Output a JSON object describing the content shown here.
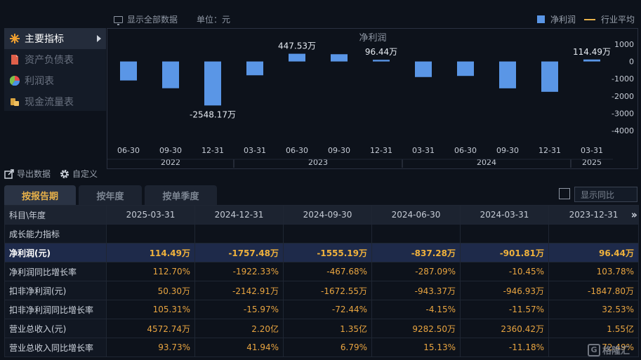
{
  "toolbar": {
    "show_all": "显示全部数据",
    "unit": "单位：元",
    "legend_net_profit": "净利润",
    "legend_industry_avg": "行业平均"
  },
  "menu": {
    "items": [
      {
        "label": "主要指标",
        "icon": "star-icon"
      },
      {
        "label": "资产负债表",
        "icon": "document-icon"
      },
      {
        "label": "利润表",
        "icon": "pie-icon"
      },
      {
        "label": "现金流量表",
        "icon": "coins-icon"
      }
    ]
  },
  "chart_data": {
    "type": "bar",
    "title": "净利润",
    "categories": [
      "06-30",
      "09-30",
      "12-31",
      "03-31",
      "06-30",
      "09-30",
      "12-31",
      "03-31",
      "06-30",
      "09-30",
      "12-31",
      "03-31"
    ],
    "year_groups": [
      "2022",
      "2023",
      "2024",
      "2025"
    ],
    "values": [
      -1100,
      -1550,
      -2548.17,
      -800,
      447.53,
      420,
      96.44,
      -901.81,
      -837.28,
      -1555.19,
      -1757.48,
      114.49
    ],
    "data_labels": {
      "2": "-2548.17万",
      "4": "447.53万",
      "6": "96.44万",
      "11": "114.49万"
    },
    "yticks": [
      "1000",
      "0",
      "-1000",
      "-2000",
      "-3000",
      "-4000"
    ],
    "ylim": [
      -4000,
      1000
    ],
    "colors": {
      "bar": "#5a96e6",
      "industry": "#e8b24a"
    }
  },
  "actions": {
    "export": "导出数据",
    "customize": "自定义"
  },
  "tabs": {
    "report": "按报告期",
    "year": "按年度",
    "quarter": "按单季度",
    "yoy": "显示同比"
  },
  "table": {
    "header": "科目\\年度",
    "columns": [
      "2025-03-31",
      "2024-12-31",
      "2024-09-30",
      "2024-06-30",
      "2024-03-31",
      "2023-12-31"
    ],
    "section": "成长能力指标",
    "rows": [
      {
        "label": "净利润(元)",
        "values": [
          "114.49万",
          "-1757.48万",
          "-1555.19万",
          "-837.28万",
          "-901.81万",
          "96.44万"
        ]
      },
      {
        "label": "净利润同比增长率",
        "values": [
          "112.70%",
          "-1922.33%",
          "-467.68%",
          "-287.09%",
          "-10.45%",
          "103.78%"
        ]
      },
      {
        "label": "扣非净利润(元)",
        "values": [
          "50.30万",
          "-2142.91万",
          "-1672.55万",
          "-943.37万",
          "-946.93万",
          "-1847.80万"
        ]
      },
      {
        "label": "扣非净利润同比增长率",
        "values": [
          "105.31%",
          "-15.97%",
          "-72.44%",
          "-4.15%",
          "-11.57%",
          "32.53%"
        ]
      },
      {
        "label": "营业总收入(元)",
        "values": [
          "4572.74万",
          "2.20亿",
          "1.35亿",
          "9282.50万",
          "2360.42万",
          "1.55亿"
        ]
      },
      {
        "label": "营业总收入同比增长率",
        "values": [
          "93.73%",
          "41.94%",
          "6.79%",
          "15.13%",
          "-11.18%",
          "72.49%"
        ]
      }
    ]
  },
  "watermark": "格隆汇"
}
